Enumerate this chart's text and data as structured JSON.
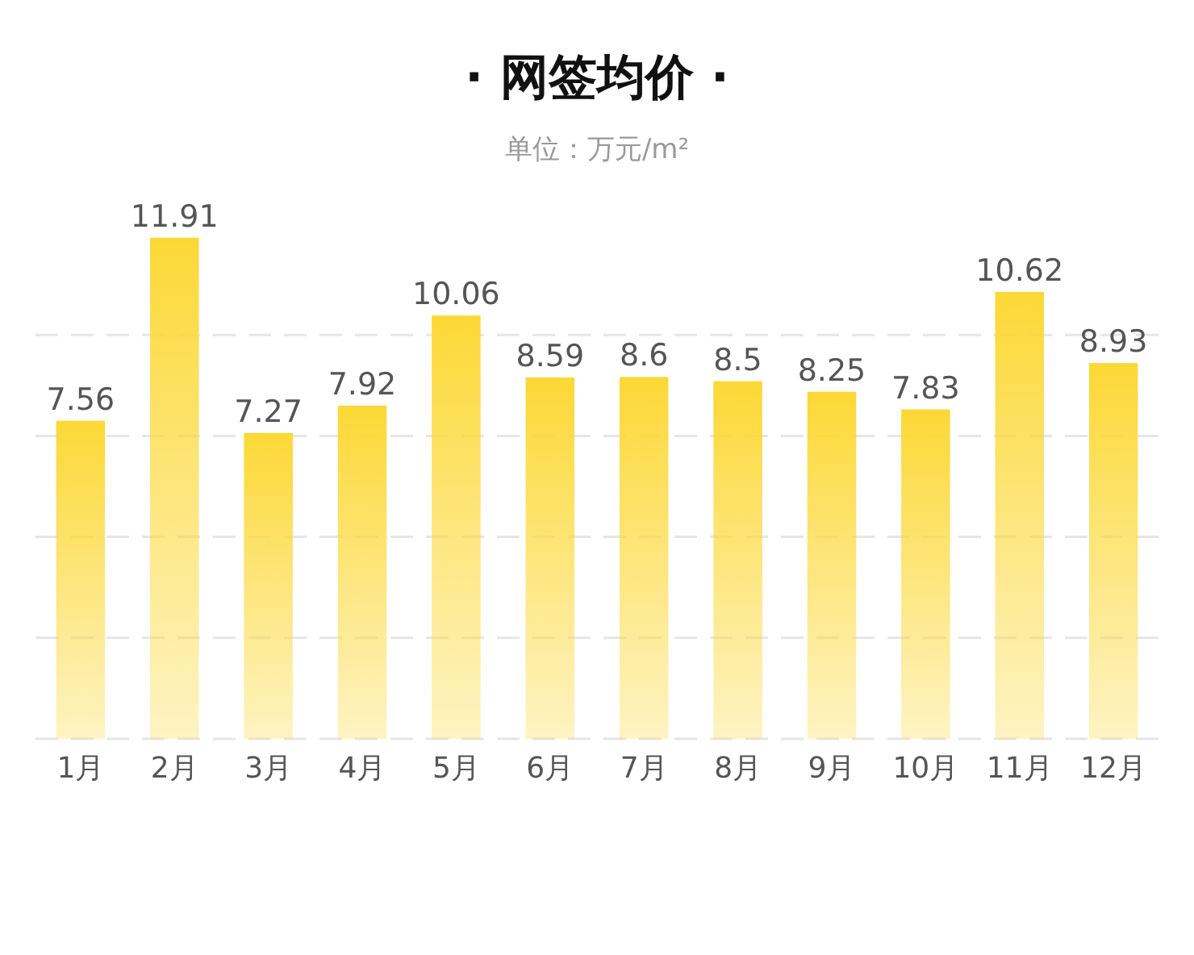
{
  "chart_data": {
    "type": "bar",
    "title": "· 网签均价 ·",
    "subtitle": "单位：万元/m²",
    "categories": [
      "1月",
      "2月",
      "3月",
      "4月",
      "5月",
      "6月",
      "7月",
      "8月",
      "9月",
      "10月",
      "11月",
      "12月"
    ],
    "values": [
      7.56,
      11.91,
      7.27,
      7.92,
      10.06,
      8.59,
      8.6,
      8.5,
      8.25,
      7.83,
      10.62,
      8.93
    ],
    "color": "#fcd836",
    "ylim": [
      0,
      12
    ],
    "yticks": [
      {
        "value": 0,
        "label": null
      },
      {
        "value": 2.4,
        "label": null
      },
      {
        "value": 4.8,
        "label": null
      },
      {
        "value": 7.2,
        "label": null
      },
      {
        "value": 9.6,
        "label": null
      }
    ],
    "tick_labels": "x",
    "grid": "y",
    "data_labels": true
  }
}
